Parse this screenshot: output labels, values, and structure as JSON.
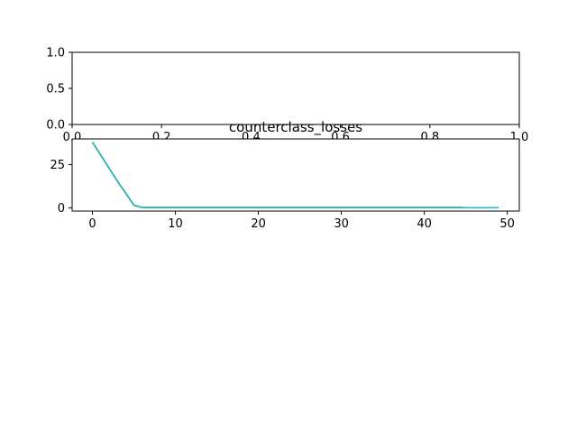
{
  "chart_data": [
    {
      "type": "line",
      "title": "",
      "xlabel": "",
      "ylabel": "",
      "xlim": [
        0,
        1
      ],
      "ylim": [
        0,
        1
      ],
      "xticks": [
        "0.0",
        "0.2",
        "0.4",
        "0.6",
        "0.8",
        "1.0"
      ],
      "yticks": [
        "0.0",
        "0.5",
        "1.0"
      ],
      "grid": false,
      "series": []
    },
    {
      "type": "line",
      "title": "counterclass_losses",
      "xlabel": "",
      "ylabel": "",
      "xlim": [
        -2.45,
        51.45
      ],
      "ylim": [
        -1.9,
        39.9
      ],
      "xticks": [
        "0",
        "10",
        "20",
        "30",
        "40",
        "50"
      ],
      "yticks": [
        "0",
        "25"
      ],
      "grid": false,
      "line_colors": [
        "#1f77b4",
        "#2ca02c",
        "#9467bd",
        "#8c564b",
        "#7f7f7f",
        "#bcbd22",
        "#17becf"
      ],
      "series": [
        {
          "x": [
            0,
            1,
            2,
            3,
            4,
            5,
            6,
            7,
            8,
            9,
            10,
            11,
            12,
            13,
            14,
            15,
            16,
            17,
            18,
            19,
            20,
            21,
            22,
            23,
            24,
            25,
            26,
            27,
            28,
            29,
            30,
            31,
            32,
            33,
            34,
            35,
            36,
            37,
            38,
            39,
            40,
            41,
            42,
            43,
            44,
            45,
            46,
            47,
            48,
            49
          ],
          "y": [
            38,
            30.5,
            23,
            15.5,
            8.5,
            1.5,
            0.2,
            0.1,
            0.1,
            0.1,
            0.1,
            0.1,
            0.1,
            0.1,
            0.1,
            0.1,
            0.1,
            0.1,
            0.1,
            0.1,
            0.1,
            0.1,
            0.1,
            0.1,
            0.1,
            0.1,
            0.1,
            0.1,
            0.1,
            0.1,
            0.1,
            0.1,
            0.1,
            0.1,
            0.1,
            0.1,
            0.1,
            0.1,
            0.1,
            0.1,
            0.1,
            0.1,
            0.1,
            0.1,
            0.1,
            0.05,
            0.05,
            0.05,
            0.05,
            0.05
          ]
        }
      ]
    }
  ]
}
